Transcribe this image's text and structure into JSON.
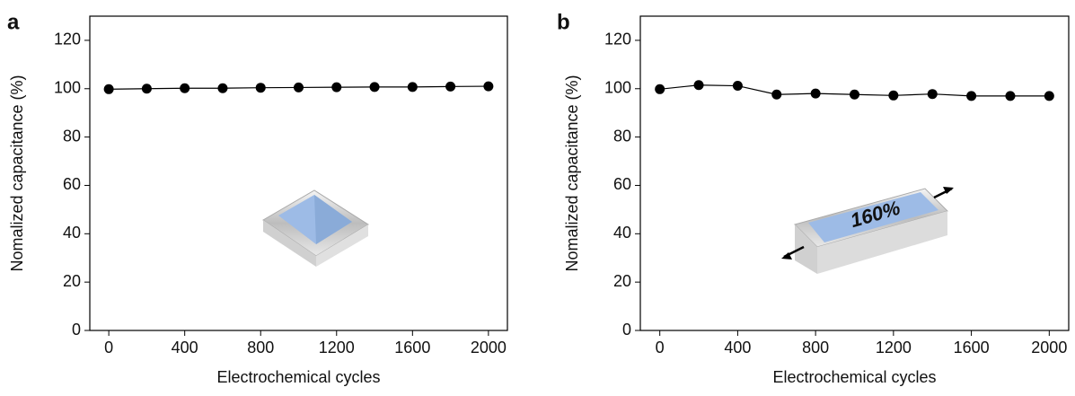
{
  "chart_data": [
    {
      "type": "line",
      "panel_label": "a",
      "xlabel": "Electrochemical cycles",
      "ylabel": "Nomalized capacitance (%)",
      "x": [
        0,
        200,
        400,
        600,
        800,
        1000,
        1200,
        1400,
        1600,
        1800,
        2000
      ],
      "series": [
        {
          "color": "#000000",
          "values": [
            99.8,
            100,
            100.2,
            100.2,
            100.4,
            100.5,
            100.6,
            100.7,
            100.7,
            100.9,
            101
          ]
        }
      ],
      "xlim": [
        -100,
        2100
      ],
      "ylim": [
        0,
        130
      ],
      "xticks": [
        0,
        400,
        800,
        1200,
        1600,
        2000
      ],
      "yticks": [
        0,
        20,
        40,
        60,
        80,
        100,
        120
      ]
    },
    {
      "type": "line",
      "panel_label": "b",
      "xlabel": "Electrochemical cycles",
      "ylabel": "Nomalized capacitance (%)",
      "annotation": "160%",
      "x": [
        0,
        200,
        400,
        600,
        800,
        1000,
        1200,
        1400,
        1600,
        1800,
        2000
      ],
      "series": [
        {
          "color": "#000000",
          "values": [
            99.8,
            101.5,
            101.2,
            97.6,
            98,
            97.6,
            97.2,
            97.8,
            97,
            97,
            97
          ]
        }
      ],
      "xlim": [
        -100,
        2100
      ],
      "ylim": [
        0,
        130
      ],
      "xticks": [
        0,
        400,
        800,
        1200,
        1600,
        2000
      ],
      "yticks": [
        0,
        20,
        40,
        60,
        80,
        100,
        120
      ]
    }
  ]
}
